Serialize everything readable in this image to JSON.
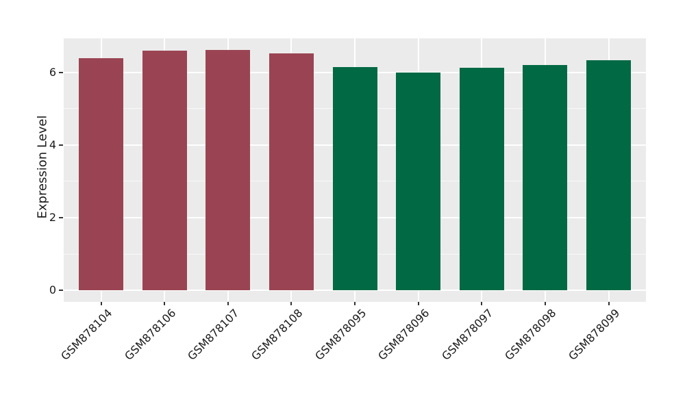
{
  "chart_data": {
    "type": "bar",
    "title": "",
    "categories": [
      "GSM878104",
      "GSM878106",
      "GSM878107",
      "GSM878108",
      "GSM878095",
      "GSM878096",
      "GSM878097",
      "GSM878098",
      "GSM878099"
    ],
    "values": [
      6.4,
      6.6,
      6.62,
      6.53,
      6.15,
      6.0,
      6.13,
      6.21,
      6.34
    ],
    "bar_colors": [
      "#9A4453",
      "#9A4453",
      "#9A4453",
      "#9A4453",
      "#026945",
      "#026945",
      "#026945",
      "#026945",
      "#026945"
    ],
    "xlabel": "",
    "ylabel": "Expression Level",
    "ytick_labels": [
      "0",
      "2",
      "4",
      "6"
    ],
    "yticks": [
      0,
      2,
      4,
      6
    ],
    "minor_yticks": [
      1,
      3,
      5
    ],
    "ylim": [
      -0.32,
      6.94
    ],
    "grid": "white major and minor horizontal lines, white vertical lines at category centers, on gray panel",
    "legend": "none"
  },
  "style": {
    "figure_bg": "#FFFFFF",
    "panel_bg": "#EBEBEB",
    "major_grid_color": "#FFFFFF",
    "minor_grid_color": "#F5F5F5",
    "tick_color": "#333333",
    "text_color": "#1A1A1A"
  }
}
